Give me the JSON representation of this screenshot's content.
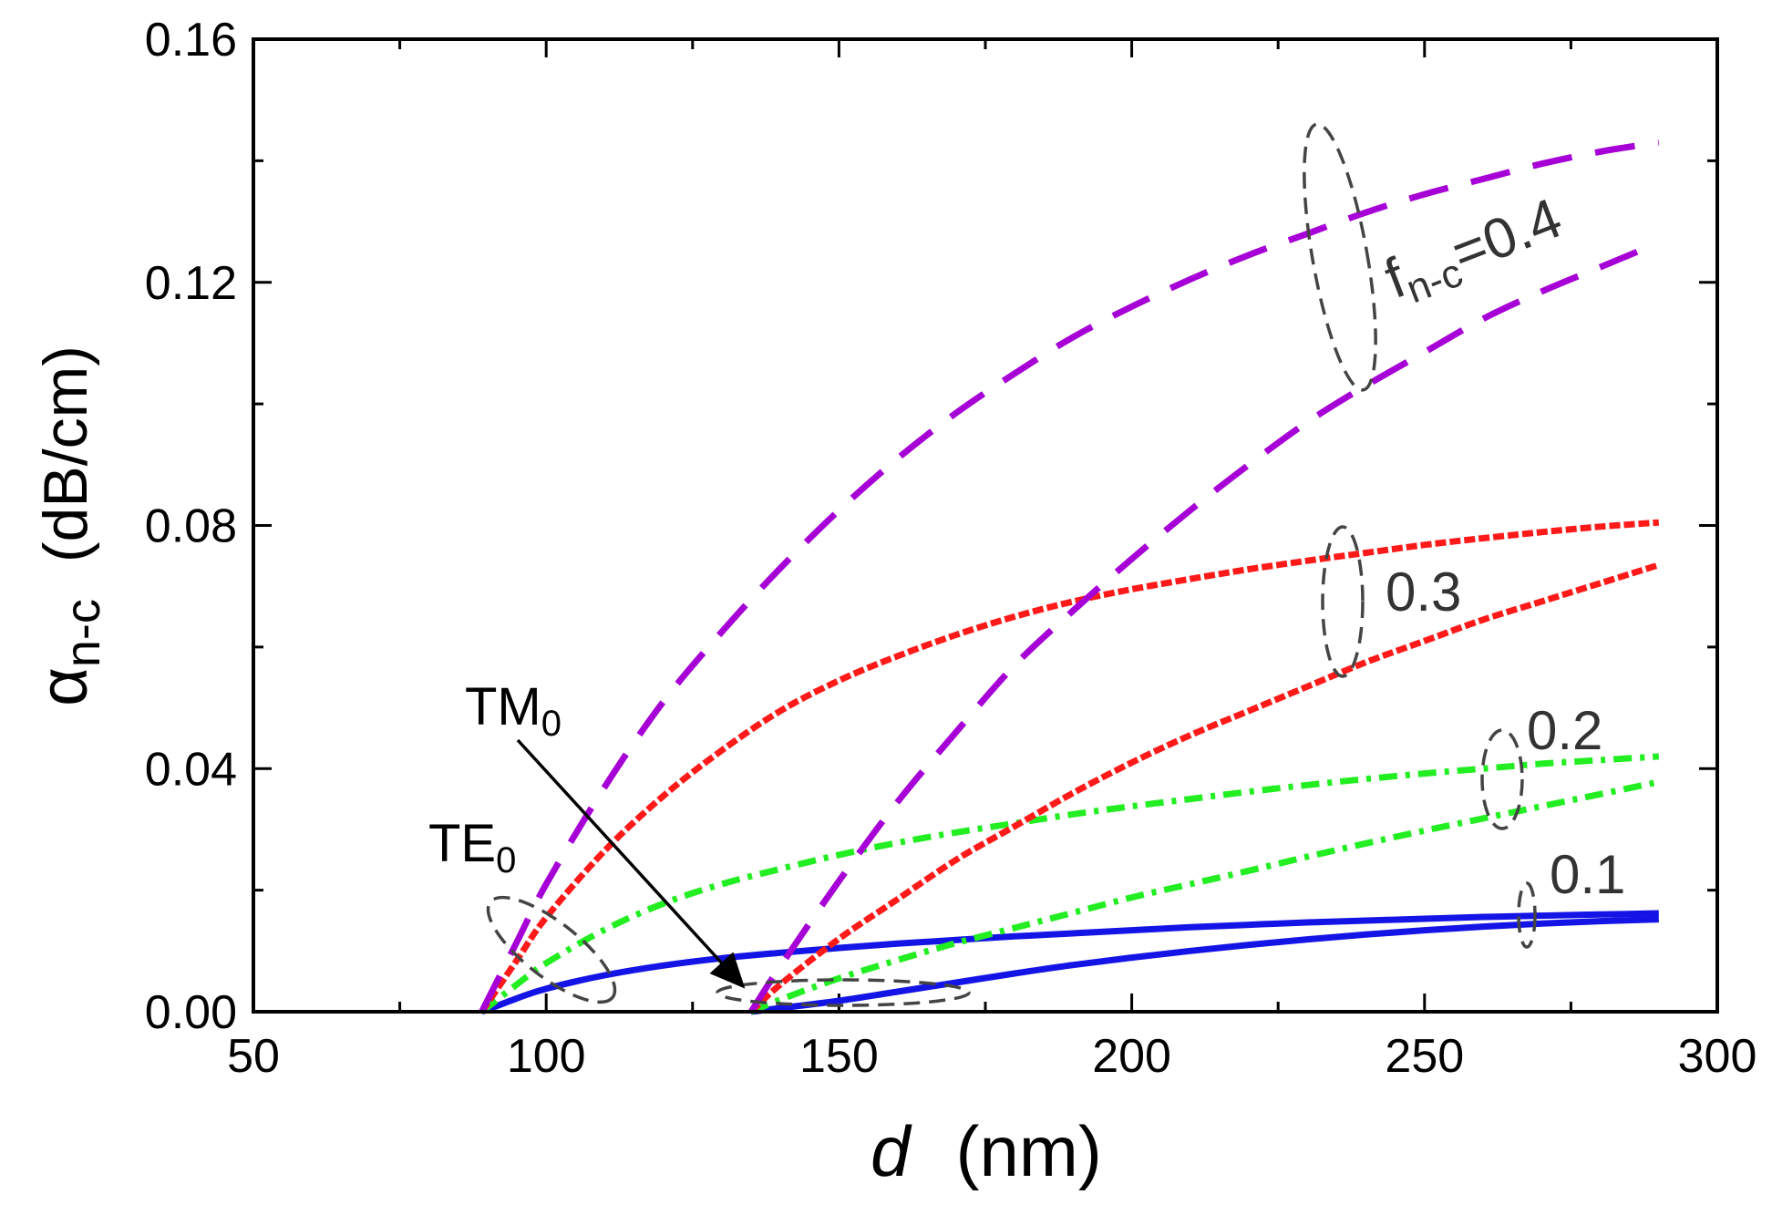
{
  "chart_data": {
    "type": "line",
    "xlabel": {
      "var": "d",
      "unit": "(nm)"
    },
    "ylabel": {
      "symbol": "α",
      "subscript": "n-c",
      "unit": "(dB/cm)"
    },
    "xlim": [
      50,
      300
    ],
    "ylim": [
      0,
      0.16
    ],
    "xticks": [
      {
        "value": 50,
        "label": "50"
      },
      {
        "value": 100,
        "label": "100"
      },
      {
        "value": 150,
        "label": "150"
      },
      {
        "value": 200,
        "label": "200"
      },
      {
        "value": 250,
        "label": "250"
      },
      {
        "value": 300,
        "label": "300"
      }
    ],
    "yticks": [
      {
        "value": 0,
        "label": "0.00"
      },
      {
        "value": 0.04,
        "label": "0.04"
      },
      {
        "value": 0.08,
        "label": "0.08"
      },
      {
        "value": 0.12,
        "label": "0.12"
      },
      {
        "value": 0.16,
        "label": "0.16"
      }
    ],
    "colors": {
      "f04": "#a600d6",
      "f03": "#ff1a1a",
      "f02": "#22ee22",
      "f01": "#1414e6"
    },
    "series": [
      {
        "name": "TE0 f=0.4",
        "mode": "TE0",
        "f": "0.4",
        "color": "#a600d6",
        "style": "long-dash",
        "x": [
          89,
          95,
          100,
          110,
          120,
          130,
          140,
          150,
          160,
          170,
          180,
          190,
          200,
          210,
          220,
          230,
          240,
          250,
          260,
          270,
          280,
          290
        ],
        "y": [
          0.0,
          0.0115,
          0.021,
          0.037,
          0.051,
          0.0625,
          0.073,
          0.0825,
          0.091,
          0.0985,
          0.105,
          0.111,
          0.116,
          0.1205,
          0.1245,
          0.128,
          0.1315,
          0.1345,
          0.137,
          0.1395,
          0.1415,
          0.143
        ]
      },
      {
        "name": "TM0 f=0.4",
        "mode": "TM0",
        "f": "0.4",
        "color": "#a600d6",
        "style": "long-dash",
        "x": [
          135,
          140,
          150,
          160,
          170,
          180,
          190,
          200,
          210,
          220,
          230,
          240,
          250,
          260,
          270,
          280,
          290
        ],
        "y": [
          0.0,
          0.0075,
          0.0215,
          0.0345,
          0.046,
          0.057,
          0.066,
          0.0745,
          0.0825,
          0.09,
          0.097,
          0.103,
          0.1085,
          0.114,
          0.1185,
          0.1225,
          0.1265
        ]
      },
      {
        "name": "TE0 f=0.3",
        "mode": "TE0",
        "f": "0.3",
        "color": "#ff1a1a",
        "style": "short-dash",
        "x": [
          89,
          95,
          100,
          110,
          120,
          130,
          140,
          150,
          160,
          170,
          180,
          190,
          200,
          210,
          220,
          230,
          240,
          250,
          260,
          270,
          280,
          290
        ],
        "y": [
          0.0,
          0.0085,
          0.0155,
          0.0265,
          0.0355,
          0.043,
          0.0495,
          0.0545,
          0.0585,
          0.062,
          0.065,
          0.0675,
          0.0695,
          0.0712,
          0.0728,
          0.0742,
          0.0755,
          0.0768,
          0.0779,
          0.0789,
          0.0798,
          0.0805
        ]
      },
      {
        "name": "TM0 f=0.3",
        "mode": "TM0",
        "f": "0.3",
        "color": "#ff1a1a",
        "style": "short-dash",
        "x": [
          135,
          140,
          150,
          160,
          170,
          180,
          190,
          200,
          210,
          220,
          230,
          240,
          250,
          260,
          270,
          280,
          290
        ],
        "y": [
          0.0,
          0.0045,
          0.012,
          0.0185,
          0.025,
          0.0305,
          0.036,
          0.041,
          0.0455,
          0.0495,
          0.0535,
          0.0575,
          0.061,
          0.0645,
          0.0675,
          0.0705,
          0.0735
        ]
      },
      {
        "name": "TE0 f=0.2",
        "mode": "TE0",
        "f": "0.2",
        "color": "#22ee22",
        "style": "dash-dot",
        "x": [
          89,
          95,
          100,
          110,
          120,
          130,
          140,
          150,
          160,
          170,
          180,
          190,
          200,
          210,
          220,
          230,
          240,
          250,
          260,
          270,
          280,
          290
        ],
        "y": [
          0.0,
          0.0045,
          0.008,
          0.0135,
          0.0178,
          0.021,
          0.0235,
          0.0258,
          0.0278,
          0.0295,
          0.031,
          0.0325,
          0.0338,
          0.035,
          0.0362,
          0.0373,
          0.0383,
          0.0392,
          0.04,
          0.0408,
          0.0414,
          0.042
        ]
      },
      {
        "name": "TM0 f=0.2",
        "mode": "TM0",
        "f": "0.2",
        "color": "#22ee22",
        "style": "dash-dot",
        "x": [
          135,
          140,
          150,
          160,
          170,
          180,
          190,
          200,
          210,
          220,
          230,
          240,
          250,
          260,
          270,
          280,
          290
        ],
        "y": [
          0.0,
          0.002,
          0.0055,
          0.0085,
          0.0113,
          0.0138,
          0.0163,
          0.0188,
          0.021,
          0.0232,
          0.0255,
          0.0277,
          0.0298,
          0.0318,
          0.0338,
          0.0358,
          0.0378
        ]
      },
      {
        "name": "TE0 f=0.1",
        "mode": "TE0",
        "f": "0.1",
        "color": "#1414e6",
        "style": "solid",
        "x": [
          89,
          95,
          100,
          110,
          120,
          130,
          140,
          150,
          160,
          170,
          180,
          190,
          200,
          210,
          220,
          230,
          240,
          250,
          260,
          270,
          280,
          290
        ],
        "y": [
          0.0,
          0.0022,
          0.0038,
          0.006,
          0.0076,
          0.0088,
          0.0097,
          0.0105,
          0.0112,
          0.0118,
          0.0124,
          0.0129,
          0.0134,
          0.0139,
          0.0143,
          0.0147,
          0.015,
          0.0153,
          0.0156,
          0.0158,
          0.016,
          0.0162
        ]
      },
      {
        "name": "TM0 f=0.1",
        "mode": "TM0",
        "f": "0.1",
        "color": "#1414e6",
        "style": "solid",
        "x": [
          135,
          140,
          150,
          160,
          170,
          180,
          190,
          200,
          210,
          220,
          230,
          240,
          250,
          260,
          270,
          280,
          290
        ],
        "y": [
          0.0,
          0.0006,
          0.0018,
          0.0033,
          0.0048,
          0.0063,
          0.0077,
          0.0089,
          0.01,
          0.011,
          0.0119,
          0.0127,
          0.0134,
          0.014,
          0.0145,
          0.0149,
          0.0152
        ]
      }
    ],
    "annotations": {
      "f04": {
        "prefix": "f",
        "sub": "n-c",
        "suffix": "=0.4"
      },
      "f03": "0.3",
      "f02": "0.2",
      "f01": "0.1",
      "te0": {
        "text": "TE",
        "sub": "0"
      },
      "tm0": {
        "text": "TM",
        "sub": "0"
      }
    }
  }
}
